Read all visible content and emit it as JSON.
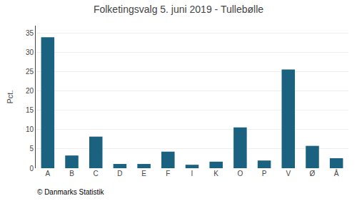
{
  "chart_data": {
    "type": "bar",
    "title": "Folketingsvalg 5. juni 2019 - Tullebølle",
    "ylabel": "Pct.",
    "categories": [
      "A",
      "B",
      "C",
      "D",
      "E",
      "F",
      "I",
      "K",
      "O",
      "P",
      "V",
      "Ø",
      "Å"
    ],
    "values": [
      34.0,
      3.3,
      8.2,
      1.1,
      1.1,
      4.3,
      0.9,
      1.7,
      10.6,
      2.0,
      25.6,
      5.8,
      2.6
    ],
    "color": "#1b6180",
    "ylim": [
      0,
      37
    ],
    "yticks": [
      0,
      5,
      10,
      15,
      20,
      25,
      30,
      35
    ],
    "grid": true,
    "annotations": [
      "© Danmarks Statistik"
    ]
  }
}
